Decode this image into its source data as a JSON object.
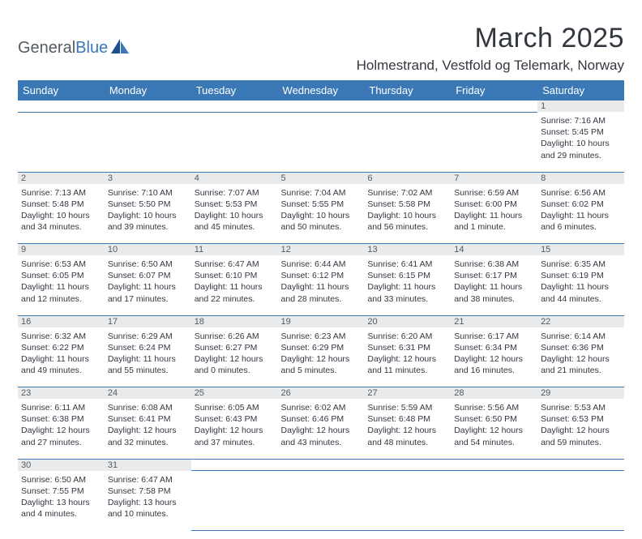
{
  "logo": {
    "part1": "General",
    "part2": "Blue"
  },
  "title": "March 2025",
  "location": "Holmestrand, Vestfold og Telemark, Norway",
  "colors": {
    "header_bg": "#3a78b6",
    "header_text": "#ffffff",
    "daynum_bg": "#e9eaeb",
    "body_text": "#333740",
    "logo_gray": "#555b61",
    "logo_blue": "#3a78b6",
    "divider": "#3a78b6",
    "page_bg": "#ffffff"
  },
  "weekdays": [
    "Sunday",
    "Monday",
    "Tuesday",
    "Wednesday",
    "Thursday",
    "Friday",
    "Saturday"
  ],
  "weeks": [
    [
      null,
      null,
      null,
      null,
      null,
      null,
      {
        "n": "1",
        "sr": "Sunrise: 7:16 AM",
        "ss": "Sunset: 5:45 PM",
        "dl": "Daylight: 10 hours and 29 minutes."
      }
    ],
    [
      {
        "n": "2",
        "sr": "Sunrise: 7:13 AM",
        "ss": "Sunset: 5:48 PM",
        "dl": "Daylight: 10 hours and 34 minutes."
      },
      {
        "n": "3",
        "sr": "Sunrise: 7:10 AM",
        "ss": "Sunset: 5:50 PM",
        "dl": "Daylight: 10 hours and 39 minutes."
      },
      {
        "n": "4",
        "sr": "Sunrise: 7:07 AM",
        "ss": "Sunset: 5:53 PM",
        "dl": "Daylight: 10 hours and 45 minutes."
      },
      {
        "n": "5",
        "sr": "Sunrise: 7:04 AM",
        "ss": "Sunset: 5:55 PM",
        "dl": "Daylight: 10 hours and 50 minutes."
      },
      {
        "n": "6",
        "sr": "Sunrise: 7:02 AM",
        "ss": "Sunset: 5:58 PM",
        "dl": "Daylight: 10 hours and 56 minutes."
      },
      {
        "n": "7",
        "sr": "Sunrise: 6:59 AM",
        "ss": "Sunset: 6:00 PM",
        "dl": "Daylight: 11 hours and 1 minute."
      },
      {
        "n": "8",
        "sr": "Sunrise: 6:56 AM",
        "ss": "Sunset: 6:02 PM",
        "dl": "Daylight: 11 hours and 6 minutes."
      }
    ],
    [
      {
        "n": "9",
        "sr": "Sunrise: 6:53 AM",
        "ss": "Sunset: 6:05 PM",
        "dl": "Daylight: 11 hours and 12 minutes."
      },
      {
        "n": "10",
        "sr": "Sunrise: 6:50 AM",
        "ss": "Sunset: 6:07 PM",
        "dl": "Daylight: 11 hours and 17 minutes."
      },
      {
        "n": "11",
        "sr": "Sunrise: 6:47 AM",
        "ss": "Sunset: 6:10 PM",
        "dl": "Daylight: 11 hours and 22 minutes."
      },
      {
        "n": "12",
        "sr": "Sunrise: 6:44 AM",
        "ss": "Sunset: 6:12 PM",
        "dl": "Daylight: 11 hours and 28 minutes."
      },
      {
        "n": "13",
        "sr": "Sunrise: 6:41 AM",
        "ss": "Sunset: 6:15 PM",
        "dl": "Daylight: 11 hours and 33 minutes."
      },
      {
        "n": "14",
        "sr": "Sunrise: 6:38 AM",
        "ss": "Sunset: 6:17 PM",
        "dl": "Daylight: 11 hours and 38 minutes."
      },
      {
        "n": "15",
        "sr": "Sunrise: 6:35 AM",
        "ss": "Sunset: 6:19 PM",
        "dl": "Daylight: 11 hours and 44 minutes."
      }
    ],
    [
      {
        "n": "16",
        "sr": "Sunrise: 6:32 AM",
        "ss": "Sunset: 6:22 PM",
        "dl": "Daylight: 11 hours and 49 minutes."
      },
      {
        "n": "17",
        "sr": "Sunrise: 6:29 AM",
        "ss": "Sunset: 6:24 PM",
        "dl": "Daylight: 11 hours and 55 minutes."
      },
      {
        "n": "18",
        "sr": "Sunrise: 6:26 AM",
        "ss": "Sunset: 6:27 PM",
        "dl": "Daylight: 12 hours and 0 minutes."
      },
      {
        "n": "19",
        "sr": "Sunrise: 6:23 AM",
        "ss": "Sunset: 6:29 PM",
        "dl": "Daylight: 12 hours and 5 minutes."
      },
      {
        "n": "20",
        "sr": "Sunrise: 6:20 AM",
        "ss": "Sunset: 6:31 PM",
        "dl": "Daylight: 12 hours and 11 minutes."
      },
      {
        "n": "21",
        "sr": "Sunrise: 6:17 AM",
        "ss": "Sunset: 6:34 PM",
        "dl": "Daylight: 12 hours and 16 minutes."
      },
      {
        "n": "22",
        "sr": "Sunrise: 6:14 AM",
        "ss": "Sunset: 6:36 PM",
        "dl": "Daylight: 12 hours and 21 minutes."
      }
    ],
    [
      {
        "n": "23",
        "sr": "Sunrise: 6:11 AM",
        "ss": "Sunset: 6:38 PM",
        "dl": "Daylight: 12 hours and 27 minutes."
      },
      {
        "n": "24",
        "sr": "Sunrise: 6:08 AM",
        "ss": "Sunset: 6:41 PM",
        "dl": "Daylight: 12 hours and 32 minutes."
      },
      {
        "n": "25",
        "sr": "Sunrise: 6:05 AM",
        "ss": "Sunset: 6:43 PM",
        "dl": "Daylight: 12 hours and 37 minutes."
      },
      {
        "n": "26",
        "sr": "Sunrise: 6:02 AM",
        "ss": "Sunset: 6:46 PM",
        "dl": "Daylight: 12 hours and 43 minutes."
      },
      {
        "n": "27",
        "sr": "Sunrise: 5:59 AM",
        "ss": "Sunset: 6:48 PM",
        "dl": "Daylight: 12 hours and 48 minutes."
      },
      {
        "n": "28",
        "sr": "Sunrise: 5:56 AM",
        "ss": "Sunset: 6:50 PM",
        "dl": "Daylight: 12 hours and 54 minutes."
      },
      {
        "n": "29",
        "sr": "Sunrise: 5:53 AM",
        "ss": "Sunset: 6:53 PM",
        "dl": "Daylight: 12 hours and 59 minutes."
      }
    ],
    [
      {
        "n": "30",
        "sr": "Sunrise: 6:50 AM",
        "ss": "Sunset: 7:55 PM",
        "dl": "Daylight: 13 hours and 4 minutes."
      },
      {
        "n": "31",
        "sr": "Sunrise: 6:47 AM",
        "ss": "Sunset: 7:58 PM",
        "dl": "Daylight: 13 hours and 10 minutes."
      },
      null,
      null,
      null,
      null,
      null
    ]
  ]
}
